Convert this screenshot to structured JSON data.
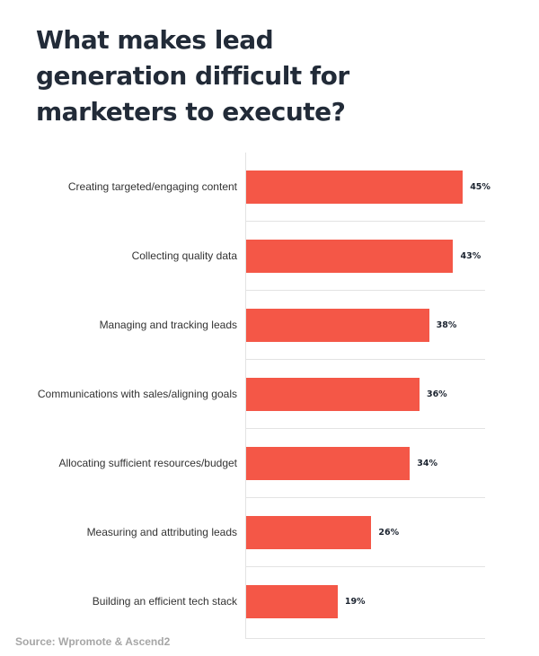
{
  "title": "What makes lead generation difficult for marketers to execute?",
  "source": "Source: Wpromote & Ascend2",
  "colors": {
    "bar": "#f45747",
    "title": "#222b38",
    "gridline": "#e3e3e3",
    "source": "#a6a6a6"
  },
  "chart_data": {
    "type": "bar",
    "orientation": "horizontal",
    "title": "What makes lead generation difficult for marketers to execute?",
    "xlabel": "",
    "ylabel": "",
    "xlim": [
      0,
      50
    ],
    "grid": false,
    "legend": null,
    "categories": [
      "Creating targeted/engaging content",
      "Collecting quality data",
      "Managing and tracking leads",
      "Communications with sales/aligning goals",
      "Allocating sufficient resources/budget",
      "Measuring and attributing leads",
      "Building an efficient tech stack"
    ],
    "values": [
      45,
      43,
      38,
      36,
      34,
      26,
      19
    ],
    "value_labels": [
      "45%",
      "43%",
      "38%",
      "36%",
      "34%",
      "26%",
      "19%"
    ],
    "annotations": [
      "Source: Wpromote & Ascend2"
    ]
  }
}
